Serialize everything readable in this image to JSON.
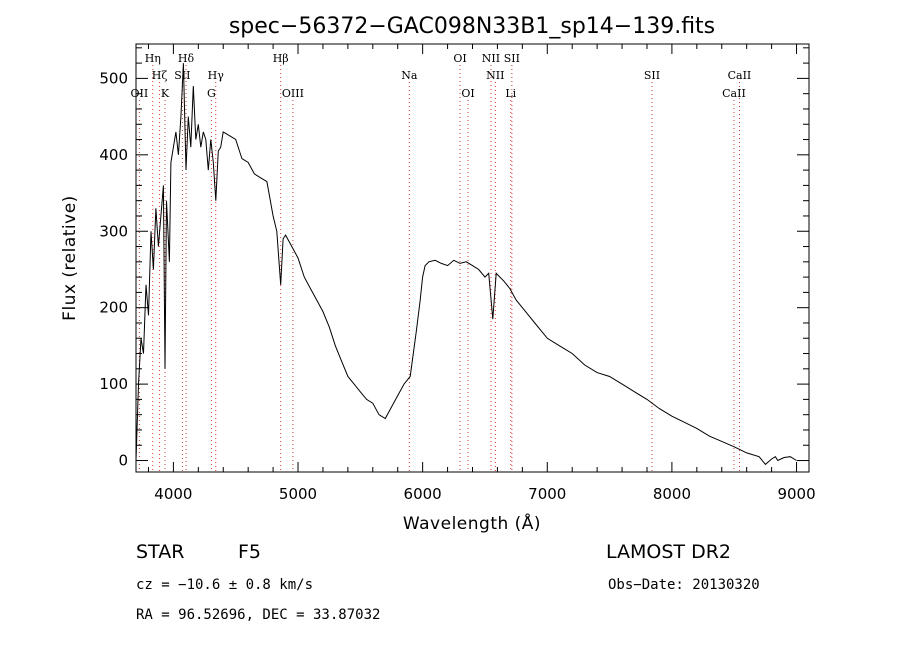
{
  "chart_data": {
    "type": "line",
    "title": "spec−56372−GAC098N33B1_sp14−139.fits",
    "xlabel": "Wavelength (Å)",
    "ylabel": "Flux (relative)",
    "xlim": [
      3700,
      9100
    ],
    "ylim": [
      -15,
      545
    ],
    "xticks": [
      4000,
      5000,
      6000,
      7000,
      8000,
      9000
    ],
    "yticks": [
      0,
      100,
      200,
      300,
      400,
      500
    ],
    "grid": false,
    "series": [
      {
        "x": [
          3700,
          3720,
          3740,
          3760,
          3780,
          3800,
          3820,
          3840,
          3860,
          3880,
          3900,
          3920,
          3933,
          3945,
          3968,
          3980,
          4000,
          4020,
          4040,
          4060,
          4080,
          4101,
          4120,
          4140,
          4160,
          4180,
          4200,
          4220,
          4240,
          4260,
          4280,
          4300,
          4320,
          4340,
          4360,
          4380,
          4400,
          4450,
          4500,
          4550,
          4600,
          4650,
          4700,
          4750,
          4800,
          4830,
          4861,
          4880,
          4900,
          4950,
          5000,
          5050,
          5100,
          5150,
          5200,
          5250,
          5300,
          5350,
          5400,
          5450,
          5500,
          5550,
          5600,
          5650,
          5700,
          5750,
          5800,
          5850,
          5900,
          5950,
          5980,
          6000,
          6020,
          6050,
          6100,
          6150,
          6200,
          6250,
          6300,
          6350,
          6400,
          6450,
          6500,
          6530,
          6563,
          6590,
          6620,
          6650,
          6700,
          6750,
          6800,
          6850,
          6900,
          6950,
          7000,
          7100,
          7200,
          7300,
          7400,
          7500,
          7600,
          7700,
          7800,
          7900,
          8000,
          8100,
          8200,
          8300,
          8400,
          8500,
          8600,
          8700,
          8750,
          8800,
          8830,
          8850,
          8900,
          8950,
          9000
        ],
        "y": [
          0,
          100,
          160,
          140,
          230,
          190,
          300,
          250,
          330,
          280,
          320,
          360,
          120,
          340,
          260,
          390,
          410,
          430,
          400,
          450,
          520,
          380,
          450,
          410,
          490,
          420,
          440,
          410,
          430,
          420,
          380,
          420,
          390,
          340,
          405,
          410,
          430,
          425,
          420,
          395,
          390,
          375,
          370,
          365,
          320,
          300,
          230,
          290,
          295,
          280,
          265,
          240,
          225,
          210,
          195,
          175,
          150,
          130,
          110,
          100,
          90,
          80,
          75,
          60,
          55,
          70,
          85,
          100,
          110,
          170,
          210,
          240,
          255,
          260,
          262,
          258,
          255,
          262,
          258,
          260,
          255,
          250,
          240,
          245,
          185,
          245,
          240,
          235,
          225,
          210,
          200,
          190,
          180,
          170,
          160,
          150,
          140,
          125,
          115,
          110,
          100,
          90,
          80,
          68,
          58,
          50,
          42,
          32,
          25,
          18,
          10,
          5,
          -5,
          2,
          5,
          0,
          4,
          5,
          0
        ]
      }
    ],
    "lines_top": [
      {
        "label": "Hη",
        "x": 3835
      },
      {
        "label": "Hζ",
        "x": 3889
      },
      {
        "label": "OII",
        "x": 3727
      },
      {
        "label": "K",
        "x": 3933
      },
      {
        "label": "Hδ",
        "x": 4101
      },
      {
        "label": "SII",
        "x": 4072
      },
      {
        "label": "Hγ",
        "x": 4340
      },
      {
        "label": "G",
        "x": 4305
      },
      {
        "label": "Hβ",
        "x": 4861
      },
      {
        "label": "OIII",
        "x": 4959
      },
      {
        "label": "Na",
        "x": 5893
      },
      {
        "label": "OI",
        "x": 6300
      },
      {
        "label": "OI",
        "x": 6364
      },
      {
        "label": "NII",
        "x": 6548
      },
      {
        "label": "NII",
        "x": 6583
      },
      {
        "label": "SII",
        "x": 6716
      },
      {
        "label": "Li",
        "x": 6707
      },
      {
        "label": "SII",
        "x": 7840
      },
      {
        "label": "CaII",
        "x": 8542
      },
      {
        "label": "CaII",
        "x": 8498
      }
    ]
  },
  "info": {
    "class": "STAR",
    "subclass": "F5",
    "cz": "cz = −10.6 ± 0.8 km/s",
    "radec": "RA =  96.52696, DEC =  33.87032",
    "survey": "LAMOST DR2",
    "obsdate": "Obs−Date: 20130320"
  }
}
